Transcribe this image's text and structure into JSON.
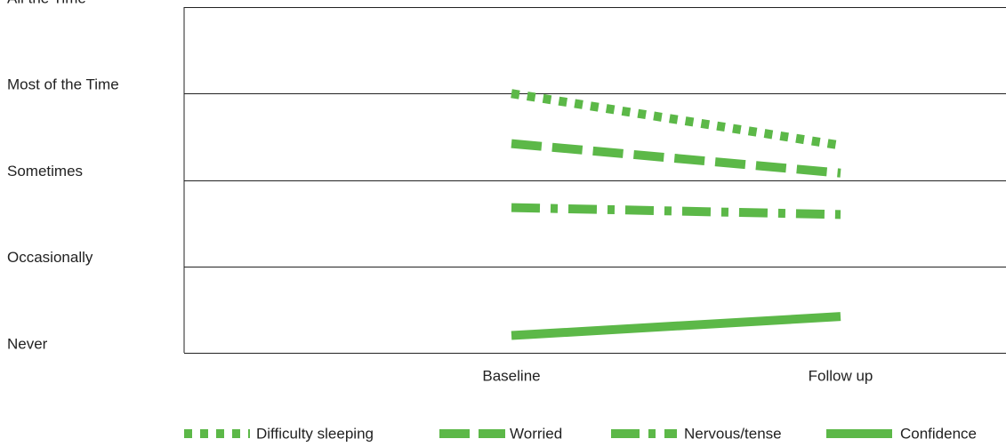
{
  "chart_data": {
    "type": "line",
    "title": "",
    "xlabel": "",
    "ylabel": "",
    "categories": [
      "Baseline",
      "Follow up"
    ],
    "y_levels": [
      "Never",
      "Occasionally",
      "Sometimes",
      "Most of the Time",
      "All the Time"
    ],
    "ylim": [
      1,
      5
    ],
    "grid": true,
    "legend_position": "bottom",
    "series": [
      {
        "name": "Difficulty sleeping",
        "values": [
          4.0,
          3.4
        ],
        "dash": "dotted",
        "color": "#5cb848"
      },
      {
        "name": "Worried",
        "values": [
          3.42,
          3.08
        ],
        "dash": "dashed",
        "color": "#5cb848"
      },
      {
        "name": "Nervous/tense",
        "values": [
          2.68,
          2.6
        ],
        "dash": "dash-dot",
        "color": "#5cb848"
      },
      {
        "name": "Confidence",
        "values": [
          1.2,
          1.42
        ],
        "dash": "solid",
        "color": "#5cb848"
      }
    ]
  }
}
